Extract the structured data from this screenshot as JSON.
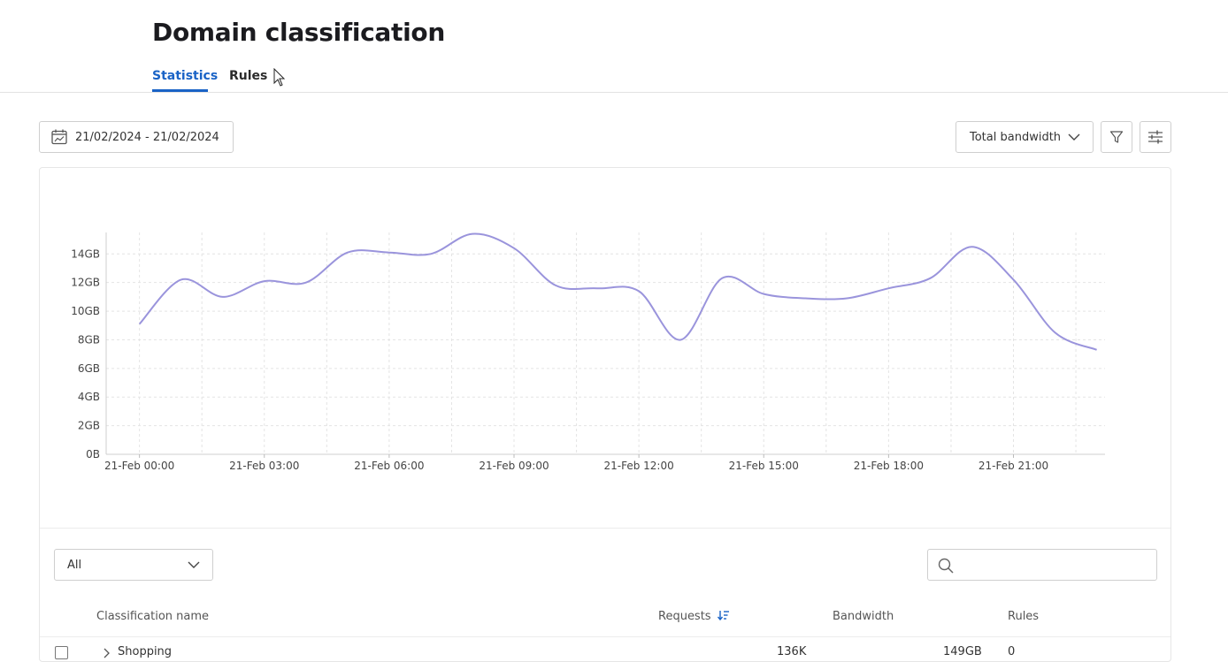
{
  "page": {
    "title": "Domain classification",
    "tabs": [
      {
        "label": "Statistics",
        "active": true
      },
      {
        "label": "Rules",
        "active": false
      }
    ]
  },
  "toolbar": {
    "date_range": "21/02/2024 - 21/02/2024",
    "metric_select": "Total bandwidth"
  },
  "colors": {
    "accent": "#1a63c6",
    "series_line": "#9a94dc"
  },
  "chart_data": {
    "type": "line",
    "title": "",
    "xlabel": "",
    "ylabel": "",
    "x": [
      0,
      1.5,
      3,
      4.5,
      6,
      7.5,
      9,
      10.5,
      12,
      13.5,
      15,
      16.5,
      18,
      19.5,
      21,
      22.5
    ],
    "y_tick_labels": [
      "0B",
      "2GB",
      "4GB",
      "6GB",
      "8GB",
      "10GB",
      "12GB",
      "14GB"
    ],
    "y_ticks": [
      0,
      2,
      4,
      6,
      8,
      10,
      12,
      14
    ],
    "x_tick_labels": [
      "21-Feb 00:00",
      "21-Feb 03:00",
      "21-Feb 06:00",
      "21-Feb 09:00",
      "21-Feb 12:00",
      "21-Feb 15:00",
      "21-Feb 18:00",
      "21-Feb 21:00"
    ],
    "x_ticks": [
      0,
      3,
      6,
      9,
      12,
      15,
      18,
      21
    ],
    "xlim": [
      -0.8,
      23.2
    ],
    "ylim": [
      0,
      15.5
    ],
    "series": [
      {
        "name": "Total bandwidth",
        "unit": "GB",
        "points": [
          [
            0,
            9.1
          ],
          [
            1,
            12.2
          ],
          [
            2,
            11.0
          ],
          [
            3,
            12.1
          ],
          [
            4,
            12.0
          ],
          [
            5,
            14.1
          ],
          [
            6,
            14.1
          ],
          [
            7,
            14.0
          ],
          [
            8,
            15.4
          ],
          [
            9,
            14.4
          ],
          [
            10,
            11.8
          ],
          [
            11,
            11.6
          ],
          [
            12,
            11.4
          ],
          [
            13,
            8.0
          ],
          [
            14,
            12.3
          ],
          [
            15,
            11.2
          ],
          [
            16,
            10.9
          ],
          [
            17,
            10.9
          ],
          [
            18,
            11.6
          ],
          [
            19,
            12.3
          ],
          [
            20,
            14.5
          ],
          [
            21,
            12.2
          ],
          [
            22,
            8.5
          ],
          [
            23,
            7.3
          ]
        ]
      }
    ]
  },
  "table": {
    "filter_select": "All",
    "search_placeholder": "",
    "columns": [
      "Classification name",
      "Requests",
      "Bandwidth",
      "Rules"
    ],
    "rows": [
      {
        "name": "Shopping",
        "requests": "136K",
        "bandwidth": "149GB",
        "rules": "0"
      }
    ]
  }
}
